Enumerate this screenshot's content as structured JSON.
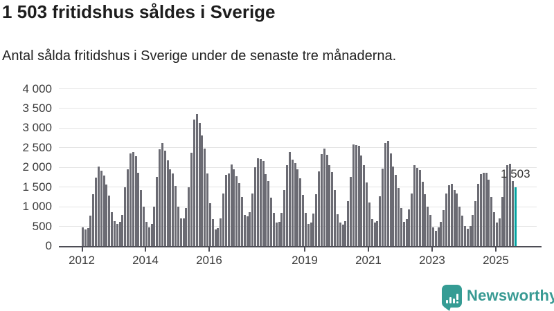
{
  "header": {
    "title": "1 503 fritidshus såldes i Sverige",
    "subtitle": "Antal sålda fritidshus i Sverige under de senaste tre månaderna."
  },
  "chart_data": {
    "type": "bar",
    "title": "1 503 fritidshus såldes i Sverige",
    "subtitle": "Antal sålda fritidshus i Sverige under de senaste tre månaderna.",
    "x_start": "2012-01",
    "x_end": "2025-08",
    "frequency": "monthly (rolling three-month totals)",
    "ylim": [
      0,
      4000
    ],
    "ytick_values": [
      0,
      500,
      1000,
      1500,
      2000,
      2500,
      3000,
      3500,
      4000
    ],
    "ytick_labels": [
      "0",
      "500",
      "1 000",
      "1 500",
      "2 000",
      "2 500",
      "3 000",
      "3 500",
      "4 000"
    ],
    "xtick_years": [
      2012,
      2014,
      2016,
      2019,
      2021,
      2023,
      2025
    ],
    "xtick_labels": [
      "2012",
      "2014",
      "2016",
      "2019",
      "2021",
      "2023",
      "2025"
    ],
    "grid": true,
    "legend": "none",
    "bar_color": "#6b6b73",
    "highlight_color": "#00a2a0",
    "highlight_index": 163,
    "highlight_value": 1503,
    "highlight_label": "1 503",
    "values": [
      470,
      415,
      460,
      780,
      1310,
      1745,
      2030,
      1910,
      1790,
      1560,
      1290,
      860,
      640,
      560,
      620,
      790,
      1490,
      1950,
      2360,
      2390,
      2290,
      1870,
      1430,
      1000,
      620,
      475,
      560,
      1000,
      1750,
      2465,
      2620,
      2430,
      2180,
      1955,
      1850,
      1535,
      1000,
      710,
      700,
      970,
      1500,
      2370,
      3220,
      3360,
      3125,
      2805,
      2475,
      1840,
      1085,
      690,
      430,
      460,
      710,
      1330,
      1810,
      1850,
      2080,
      1955,
      1770,
      1595,
      1245,
      795,
      755,
      870,
      1345,
      2000,
      2240,
      2215,
      2165,
      1835,
      1660,
      1230,
      850,
      600,
      620,
      850,
      1420,
      2060,
      2400,
      2195,
      2115,
      1950,
      1720,
      1300,
      850,
      560,
      590,
      835,
      1315,
      1900,
      2330,
      2475,
      2320,
      2050,
      1880,
      1430,
      805,
      590,
      545,
      630,
      1140,
      1750,
      2590,
      2570,
      2545,
      2310,
      2055,
      1615,
      1110,
      680,
      590,
      630,
      1270,
      1970,
      2615,
      2670,
      2360,
      2030,
      1815,
      1470,
      970,
      620,
      690,
      940,
      1345,
      2050,
      1995,
      1935,
      1635,
      1315,
      995,
      795,
      475,
      390,
      475,
      620,
      920,
      1330,
      1545,
      1575,
      1430,
      1345,
      1010,
      765,
      505,
      445,
      505,
      795,
      1140,
      1590,
      1835,
      1865,
      1855,
      1680,
      1245,
      860,
      595,
      705,
      1245,
      1765,
      2060,
      2085,
      1660,
      1503
    ],
    "axis_color": "#4d4d55",
    "gridline_color": "#e3e3e3",
    "tick_label_color": "#3c3c3c"
  },
  "footer": {
    "brand": "Newsworthy",
    "logo_icon": "newsworthy-speech-bubble-bar-chart-icon",
    "brand_color": "#389a93"
  }
}
